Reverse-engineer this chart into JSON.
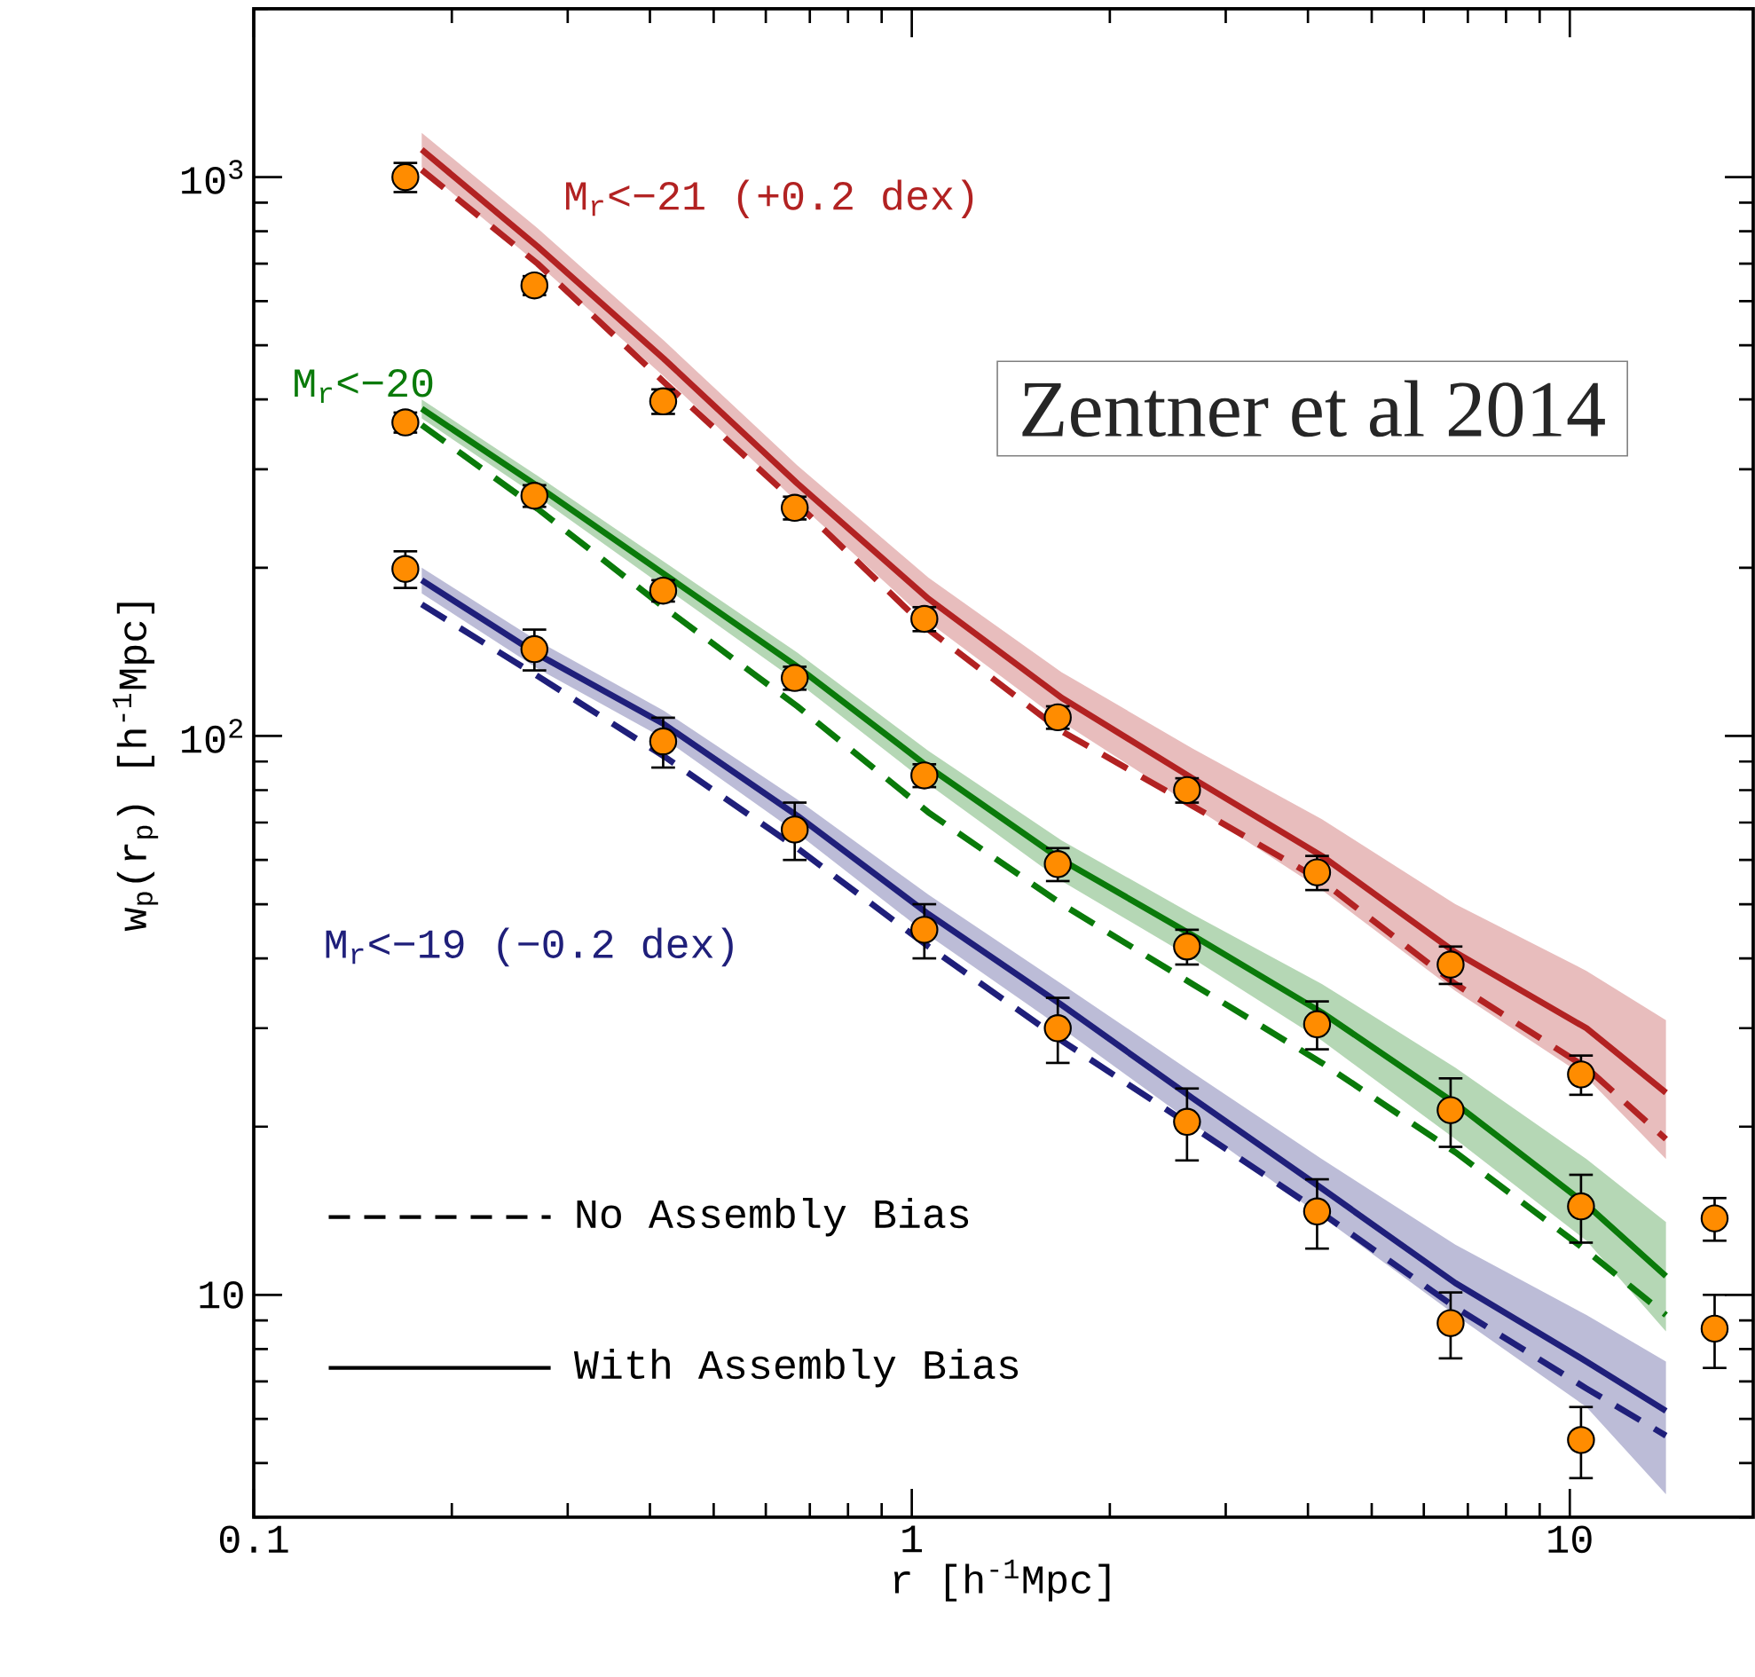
{
  "chart_data": {
    "type": "line",
    "xlabel": "r [h$^{-1}$Mpc]",
    "ylabel": "w$_{p}$(r$_{p}$) [h$^{-1}$Mpc]",
    "log": "xy",
    "xlim": [
      0.1,
      19
    ],
    "ylim": [
      4,
      2000
    ],
    "xticks": [
      0.1,
      1,
      10
    ],
    "yticks": [
      10,
      {
        "value": 100,
        "label": "10$^{2}$"
      },
      {
        "value": 1000,
        "label": "10$^{3}$"
      }
    ],
    "annotations": [
      "Zentner et al 2014",
      "No Assembly Bias",
      "With Assembly Bias"
    ],
    "series": [
      {
        "name": "M$_{r}$<−21 (+0.2 dex)",
        "line_style": "solid",
        "color": "#b22222",
        "x": [
          0.18,
          0.27,
          0.42,
          0.67,
          1.06,
          1.69,
          2.67,
          4.2,
          6.7,
          10.6,
          14
        ],
        "values": [
          1120,
          751,
          473,
          283,
          176,
          117,
          84,
          61,
          41,
          30,
          23
        ],
        "upper": [
          1200,
          810,
          510,
          305,
          192,
          130,
          95,
          71,
          50,
          38,
          31
        ],
        "lower": [
          1040,
          700,
          440,
          262,
          160,
          106,
          75,
          53,
          35,
          24.5,
          17.5
        ]
      },
      {
        "line_style": "dashed",
        "color": "#b22222",
        "x": [
          0.18,
          0.27,
          0.42,
          0.67,
          1.06,
          1.69,
          2.67,
          4.2,
          6.7,
          10.6,
          14
        ],
        "values": [
          1030,
          700,
          430,
          260,
          155,
          102,
          75,
          55,
          36,
          25.5,
          19
        ]
      },
      {
        "name": "M$_{r}$<−20",
        "line_style": "solid",
        "color": "#0a7a0a",
        "x": [
          0.18,
          0.27,
          0.42,
          0.67,
          1.06,
          1.69,
          2.67,
          4.2,
          6.7,
          10.6,
          14
        ],
        "values": [
          385,
          280,
          195,
          133,
          88,
          60,
          44,
          32,
          22,
          14.5,
          10.8
        ],
        "upper": [
          400,
          292,
          205,
          141,
          94,
          65,
          48,
          36,
          25.5,
          17.5,
          13.5
        ],
        "lower": [
          370,
          268,
          185,
          125,
          82,
          55,
          40,
          28.5,
          19,
          12.5,
          8.6
        ]
      },
      {
        "line_style": "dashed",
        "color": "#0a7a0a",
        "x": [
          0.18,
          0.27,
          0.42,
          0.67,
          1.06,
          1.69,
          2.67,
          4.2,
          6.7,
          10.6,
          14
        ],
        "values": [
          360,
          255,
          170,
          113,
          73,
          50,
          36,
          26,
          18,
          12,
          9.2
        ]
      },
      {
        "name": "M$_{r}$<−19 (−0.2 dex)",
        "line_style": "solid",
        "color": "#1f1f7a",
        "x": [
          0.18,
          0.27,
          0.42,
          0.67,
          1.06,
          1.69,
          2.67,
          4.2,
          6.7,
          10.6,
          14
        ],
        "values": [
          190,
          140,
          105,
          72,
          48,
          33,
          22.5,
          15.5,
          10.5,
          7.6,
          6.2
        ],
        "upper": [
          200,
          148,
          111,
          77,
          52,
          36,
          25,
          17.5,
          12.3,
          9.2,
          7.6
        ],
        "lower": [
          180,
          132,
          99,
          67,
          44,
          30,
          20.3,
          13.8,
          9.2,
          6.3,
          4.4
        ]
      },
      {
        "line_style": "dashed",
        "color": "#1f1f7a",
        "x": [
          0.18,
          0.27,
          0.42,
          0.67,
          1.06,
          1.69,
          2.67,
          4.2,
          6.7,
          10.6,
          14
        ],
        "values": [
          172,
          128,
          92,
          63,
          42,
          28.5,
          20,
          14,
          9.5,
          6.8,
          5.6
        ]
      },
      {
        "type": "scatter",
        "marker": "circle",
        "color": "#ff8c00",
        "x": [
          0.17,
          0.267,
          0.419,
          0.664,
          1.045,
          1.667,
          2.62,
          4.13,
          6.59,
          10.4,
          16.6
        ],
        "values": [
          1000,
          640,
          397,
          256,
          162,
          108,
          80,
          57,
          39,
          24.8,
          13.7
        ],
        "errors": [
          60,
          25,
          20,
          12,
          8,
          5,
          4,
          4,
          3,
          2,
          1.2
        ]
      },
      {
        "type": "scatter",
        "marker": "circle",
        "color": "#ff8c00",
        "x": [
          0.17,
          0.267,
          0.419,
          0.664,
          1.045,
          1.667,
          2.62,
          4.13,
          6.59,
          10.4,
          16.6
        ],
        "values": [
          364,
          269,
          182,
          127,
          85,
          59,
          42,
          30.5,
          21.4,
          14.4,
          8.7
        ],
        "errors": [
          15,
          12,
          8,
          6,
          4,
          4,
          3,
          3,
          3,
          2,
          1.3
        ]
      },
      {
        "type": "scatter",
        "marker": "circle",
        "color": "#ff8c00",
        "x": [
          0.17,
          0.267,
          0.419,
          0.664,
          1.045,
          1.667,
          2.62,
          4.13,
          6.59,
          10.4
        ],
        "values": [
          199,
          143,
          97.8,
          68,
          45,
          30,
          20.4,
          14.1,
          8.9,
          5.5
        ],
        "errors": [
          15,
          12,
          10,
          8,
          5,
          4,
          3,
          2,
          1.2,
          0.8
        ]
      }
    ]
  }
}
